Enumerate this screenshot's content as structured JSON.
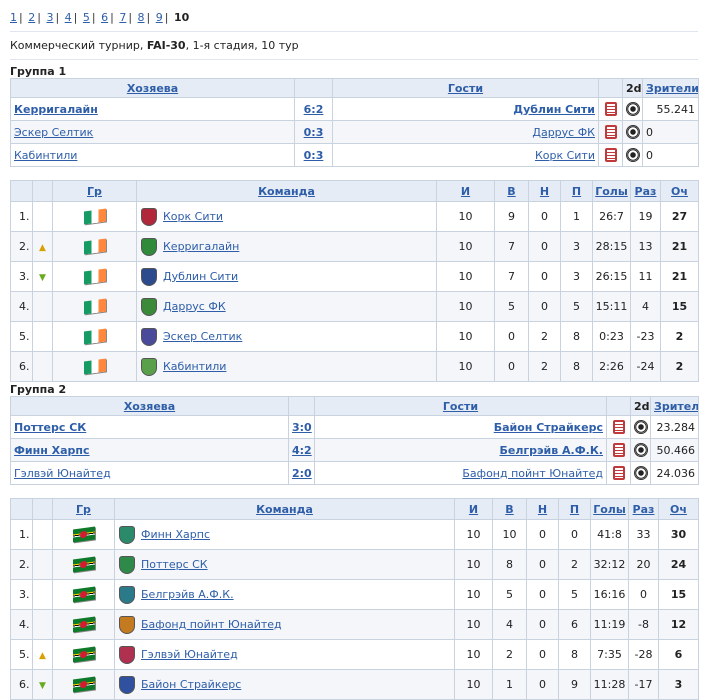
{
  "pager": {
    "pages": [
      "1",
      "2",
      "3",
      "4",
      "5",
      "6",
      "7",
      "8",
      "9"
    ],
    "current": "10"
  },
  "info": {
    "prefix": "Коммерческий турнир, ",
    "code": "FAI-30",
    "suffix": ", 1-я стадия, 10 тур"
  },
  "games_headers": {
    "home": "Хозяева",
    "away": "Гости",
    "d2": "2d",
    "spectators": "Зрители"
  },
  "standings_headers": {
    "gr": "Гр",
    "team": "Команда",
    "played": "И",
    "won": "В",
    "drawn": "Н",
    "lost": "П",
    "goals": "Голы",
    "diff": "Раз",
    "pts": "Оч"
  },
  "group1": {
    "title": "Группа 1",
    "games": [
      {
        "home": "Керригалайн",
        "score": "6:2",
        "away": "Дублин Сити",
        "spectators": "55.241"
      },
      {
        "home": "Эскер Селтик",
        "score": "0:3",
        "away": "Даррус ФК",
        "spectators": "0"
      },
      {
        "home": "Кабинтили",
        "score": "0:3",
        "away": "Корк Сити",
        "spectators": "0"
      }
    ],
    "table": [
      {
        "pos": "1.",
        "move": "",
        "team": "Корк Сити",
        "p": "10",
        "w": "9",
        "d": "0",
        "l": "1",
        "goals": "26:7",
        "diff": "19",
        "pts": "27"
      },
      {
        "pos": "2.",
        "move": "up",
        "team": "Керригалайн",
        "p": "10",
        "w": "7",
        "d": "0",
        "l": "3",
        "goals": "28:15",
        "diff": "13",
        "pts": "21"
      },
      {
        "pos": "3.",
        "move": "down",
        "team": "Дублин Сити",
        "p": "10",
        "w": "7",
        "d": "0",
        "l": "3",
        "goals": "26:15",
        "diff": "11",
        "pts": "21"
      },
      {
        "pos": "4.",
        "move": "",
        "team": "Даррус ФК",
        "p": "10",
        "w": "5",
        "d": "0",
        "l": "5",
        "goals": "15:11",
        "diff": "4",
        "pts": "15"
      },
      {
        "pos": "5.",
        "move": "",
        "team": "Эскер Селтик",
        "p": "10",
        "w": "0",
        "d": "2",
        "l": "8",
        "goals": "0:23",
        "diff": "-23",
        "pts": "2"
      },
      {
        "pos": "6.",
        "move": "",
        "team": "Кабинтили",
        "p": "10",
        "w": "0",
        "d": "2",
        "l": "8",
        "goals": "2:26",
        "diff": "-24",
        "pts": "2"
      }
    ]
  },
  "group2": {
    "title": "Группа 2",
    "games": [
      {
        "home": "Поттерс СК",
        "score": "3:0",
        "away": "Байон Страйкерс",
        "spectators": "23.284"
      },
      {
        "home": "Финн Харпс",
        "score": "4:2",
        "away": "Белгрэйв А.Ф.К.",
        "spectators": "50.466"
      },
      {
        "home": "Гэлвэй Юнайтед",
        "score": "2:0",
        "away": "Бафонд пойнт Юнайтед",
        "spectators": "24.036"
      }
    ],
    "table": [
      {
        "pos": "1.",
        "move": "",
        "team": "Финн Харпс",
        "p": "10",
        "w": "10",
        "d": "0",
        "l": "0",
        "goals": "41:8",
        "diff": "33",
        "pts": "30"
      },
      {
        "pos": "2.",
        "move": "",
        "team": "Поттерс СК",
        "p": "10",
        "w": "8",
        "d": "0",
        "l": "2",
        "goals": "32:12",
        "diff": "20",
        "pts": "24"
      },
      {
        "pos": "3.",
        "move": "",
        "team": "Белгрэйв А.Ф.К.",
        "p": "10",
        "w": "5",
        "d": "0",
        "l": "5",
        "goals": "16:16",
        "diff": "0",
        "pts": "15"
      },
      {
        "pos": "4.",
        "move": "",
        "team": "Бафонд пойнт Юнайтед",
        "p": "10",
        "w": "4",
        "d": "0",
        "l": "6",
        "goals": "11:19",
        "diff": "-8",
        "pts": "12"
      },
      {
        "pos": "5.",
        "move": "up",
        "team": "Гэлвэй Юнайтед",
        "p": "10",
        "w": "2",
        "d": "0",
        "l": "8",
        "goals": "7:35",
        "diff": "-28",
        "pts": "6"
      },
      {
        "pos": "6.",
        "move": "down",
        "team": "Байон Страйкерс",
        "p": "10",
        "w": "1",
        "d": "0",
        "l": "9",
        "goals": "11:28",
        "diff": "-17",
        "pts": "3"
      }
    ]
  },
  "icons": {
    "match_report": "match-report-icon",
    "ball": "ball-icon",
    "flag_g1": "ireland-flag-icon",
    "flag_g2": "dominica-flag-icon",
    "up": "arrow-up-icon",
    "down": "arrow-down-icon"
  },
  "colors": {
    "link": "#2e5ea8",
    "header_bg": "#e6ecf5",
    "border": "#c9d3df",
    "up_arrow": "#d8a000",
    "down_arrow": "#6aaa1e"
  }
}
